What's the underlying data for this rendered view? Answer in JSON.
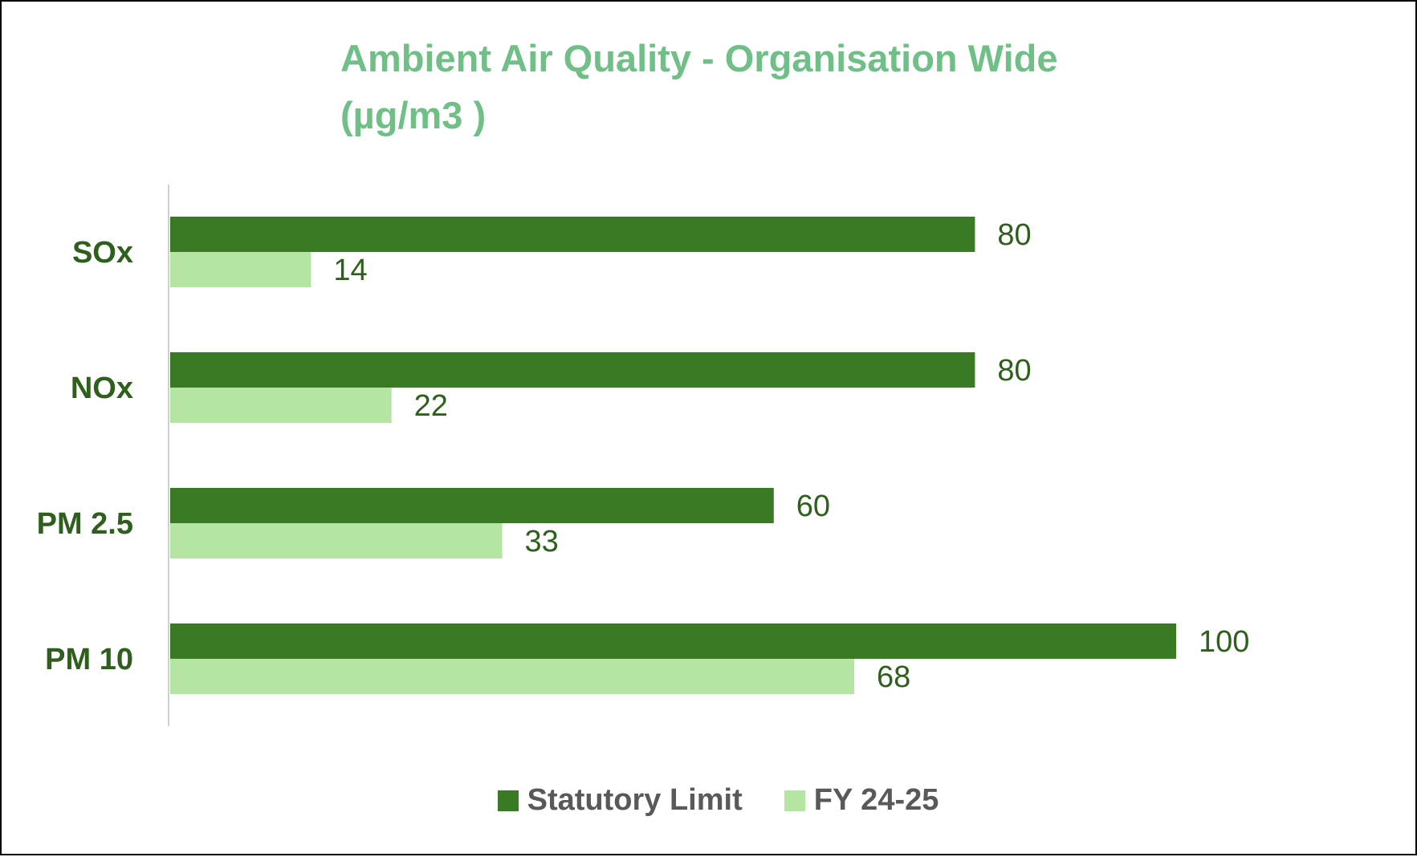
{
  "chart_data": {
    "type": "bar",
    "orientation": "horizontal",
    "title_lines": [
      "Ambient Air Quality - Organisation Wide",
      "(µg/m3 )"
    ],
    "categories": [
      "SOx",
      "NOx",
      "PM 2.5",
      "PM 10"
    ],
    "series": [
      {
        "name": "Statutory Limit",
        "values": [
          80,
          80,
          60,
          100
        ],
        "color": "#3b7a25"
      },
      {
        "name": "FY 24-25",
        "values": [
          14,
          22,
          33,
          68
        ],
        "color": "#b5e5a3"
      }
    ],
    "data_labels": true,
    "xaxis_visible": false,
    "xlim": [
      0,
      120
    ],
    "grid": false,
    "legend_position": "bottom",
    "colors": {
      "title": "#6fbf87",
      "category_labels": "#2e5f1d",
      "value_labels": "#2e5f1d",
      "legend_text": "#595959",
      "axis_line": "#d0d0d0",
      "border": "#000000"
    }
  }
}
